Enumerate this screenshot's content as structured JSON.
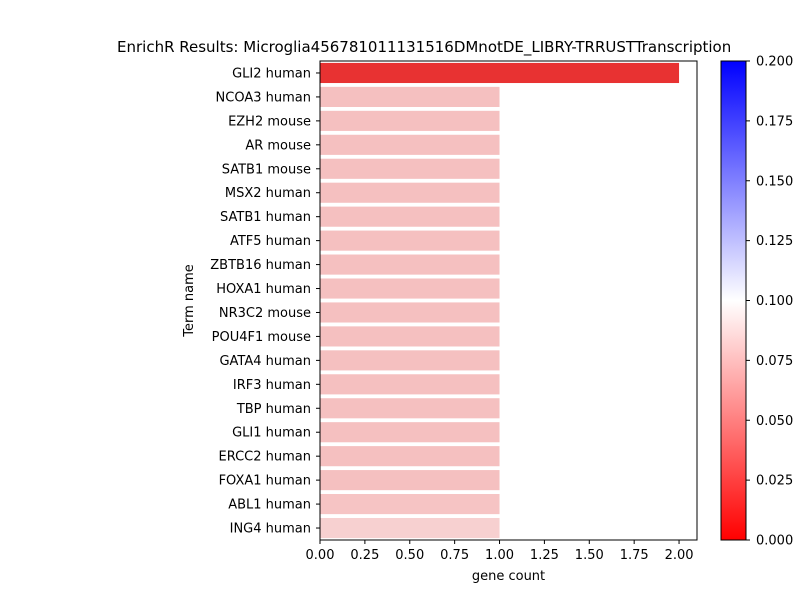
{
  "chart_data": {
    "type": "bar",
    "orientation": "horizontal",
    "title": "EnrichR Results: Microglia456781011131516DMnotDE_LIBRY-TRRUSTTranscription",
    "xlabel": "gene count",
    "ylabel": "Term name",
    "xlim": [
      0,
      2.1
    ],
    "xticks": [
      "0.00",
      "0.25",
      "0.50",
      "0.75",
      "1.00",
      "1.25",
      "1.50",
      "1.75",
      "2.00"
    ],
    "categories": [
      "GLI2 human",
      "NCOA3 human",
      "EZH2 mouse",
      "AR mouse",
      "SATB1 mouse",
      "MSX2 human",
      "SATB1 human",
      "ATF5 human",
      "ZBTB16 human",
      "HOXA1 human",
      "NR3C2 mouse",
      "POU4F1 mouse",
      "GATA4 human",
      "IRF3 human",
      "TBP human",
      "GLI1 human",
      "ERCC2 human",
      "FOXA1 human",
      "ABL1 human",
      "ING4 human"
    ],
    "values": [
      2,
      1,
      1,
      1,
      1,
      1,
      1,
      1,
      1,
      1,
      1,
      1,
      1,
      1,
      1,
      1,
      1,
      1,
      1,
      1
    ],
    "colors": [
      "#e83232",
      "#f5c0c0",
      "#f5c0c0",
      "#f5c0c0",
      "#f5c0c0",
      "#f5c0c0",
      "#f5c0c0",
      "#f5c0c0",
      "#f5c0c0",
      "#f5c0c0",
      "#f5c0c0",
      "#f5c0c0",
      "#f5c0c0",
      "#f5c0c0",
      "#f5c0c0",
      "#f5c0c0",
      "#f5c0c0",
      "#f5c0c0",
      "#f6c4c4",
      "#f7d0d0"
    ],
    "colorbar": {
      "cmap": "bwr",
      "range": [
        0,
        0.2
      ],
      "ticks": [
        "0.000",
        "0.025",
        "0.050",
        "0.075",
        "0.100",
        "0.125",
        "0.150",
        "0.175",
        "0.200"
      ]
    },
    "grid": false,
    "legend": "none"
  }
}
